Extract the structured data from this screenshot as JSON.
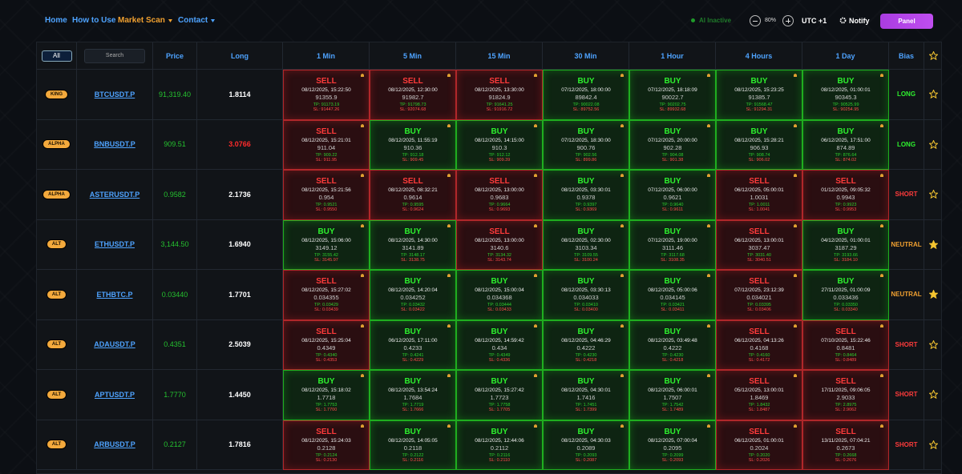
{
  "nav": {
    "links": [
      "Home",
      "How to Use",
      "Market Scan",
      "Contact"
    ],
    "ai_status": "AI Inactive",
    "zoom": "80%",
    "timezone": "UTC +1",
    "notify": "Notify",
    "panel": "Panel"
  },
  "table": {
    "filter": "All",
    "search": "Search",
    "headers": {
      "price": "Price",
      "long": "Long",
      "timeframes": [
        "1 Min",
        "5 Min",
        "15 Min",
        "30 Min",
        "1 Hour",
        "4 Hours",
        "1 Day"
      ],
      "bias": "Bias"
    },
    "rows": [
      {
        "badge": "KING",
        "symbol": "BTCUSDT.P",
        "price": "91,319.40",
        "long": "1.8114",
        "long_color": "#ffffff",
        "bias": "LONG",
        "starred": false,
        "cells": [
          [
            "SELL",
            "08/12/2025, 15:22:50",
            "91355.9",
            "TP: 91173.19",
            "SL: 91447.26"
          ],
          [
            "SELL",
            "08/12/2025, 12:30:00",
            "91982.7",
            "TP: 91798.73",
            "SL: 92074.68"
          ],
          [
            "SELL",
            "08/12/2025, 13:30:00",
            "91824.9",
            "TP: 91641.25",
            "SL: 91916.72"
          ],
          [
            "BUY",
            "07/12/2025, 18:00:00",
            "89842.4",
            "TP: 90022.08",
            "SL: 89752.56"
          ],
          [
            "BUY",
            "07/12/2025, 18:18:09",
            "90022.7",
            "TP: 90202.75",
            "SL: 89932.68"
          ],
          [
            "BUY",
            "08/12/2025, 15:23:25",
            "91385.7",
            "TP: 91568.47",
            "SL: 91294.31"
          ],
          [
            "BUY",
            "08/12/2025, 01:00:01",
            "90345.3",
            "TP: 90525.99",
            "SL: 90254.95"
          ]
        ]
      },
      {
        "badge": "ALPHA",
        "symbol": "BNBUSDT.P",
        "price": "909.51",
        "long": "3.0766",
        "long_color": "#ff2b2b",
        "bias": "LONG",
        "starred": false,
        "cells": [
          [
            "SELL",
            "08/12/2025, 15:21:01",
            "911.04",
            "TP: 909.22",
            "SL: 911.95"
          ],
          [
            "BUY",
            "08/12/2025, 11:55:19",
            "910.36",
            "TP: 912.18",
            "SL: 909.45"
          ],
          [
            "BUY",
            "08/12/2025, 14:15:00",
            "910.3",
            "TP: 912.12",
            "SL: 909.39"
          ],
          [
            "BUY",
            "07/12/2025, 18:30:00",
            "900.76",
            "TP: 902.56",
            "SL: 899.86"
          ],
          [
            "BUY",
            "07/12/2025, 20:00:00",
            "902.28",
            "TP: 904.08",
            "SL: 901.38"
          ],
          [
            "BUY",
            "08/12/2025, 15:28:21",
            "906.93",
            "TP: 908.74",
            "SL: 906.02"
          ],
          [
            "BUY",
            "06/12/2025, 17:51:00",
            "874.89",
            "TP: 876.64",
            "SL: 874.02"
          ]
        ]
      },
      {
        "badge": "ALPHA",
        "symbol": "ASTERUSDT.P",
        "price": "0.9582",
        "long": "2.1736",
        "long_color": "#ffffff",
        "bias": "SHORT",
        "starred": false,
        "cells": [
          [
            "SELL",
            "08/12/2025, 15:21:56",
            "0.954",
            "TP: 0.9521",
            "SL: 0.9550"
          ],
          [
            "SELL",
            "08/12/2025, 08:32:21",
            "0.9614",
            "TP: 0.9595",
            "SL: 0.9624"
          ],
          [
            "SELL",
            "08/12/2025, 13:00:00",
            "0.9683",
            "TP: 0.9664",
            "SL: 0.9693"
          ],
          [
            "BUY",
            "08/12/2025, 03:30:01",
            "0.9378",
            "TP: 0.9397",
            "SL: 0.9369"
          ],
          [
            "BUY",
            "07/12/2025, 06:00:00",
            "0.9621",
            "TP: 0.9640",
            "SL: 0.9611"
          ],
          [
            "SELL",
            "06/12/2025, 05:00:01",
            "1.0031",
            "TP: 1.0011",
            "SL: 1.0041"
          ],
          [
            "SELL",
            "01/12/2025, 09:05:32",
            "0.9943",
            "TP: 0.9923",
            "SL: 0.9953"
          ]
        ]
      },
      {
        "badge": "ALT",
        "symbol": "ETHUSDT.P",
        "price": "3,144.50",
        "long": "1.6940",
        "long_color": "#ffffff",
        "bias": "NEUTRAL",
        "starred": true,
        "cells": [
          [
            "BUY",
            "08/12/2025, 15:06:00",
            "3149.12",
            "TP: 3155.42",
            "SL: 3145.97"
          ],
          [
            "BUY",
            "08/12/2025, 14:30:00",
            "3141.89",
            "TP: 3148.17",
            "SL: 3138.75"
          ],
          [
            "SELL",
            "08/12/2025, 13:00:00",
            "3140.6",
            "TP: 3134.32",
            "SL: 3143.74"
          ],
          [
            "BUY",
            "08/12/2025, 02:30:00",
            "3103.34",
            "TP: 3109.55",
            "SL: 3100.24"
          ],
          [
            "BUY",
            "07/12/2025, 19:00:00",
            "3111.46",
            "TP: 3117.68",
            "SL: 3108.35"
          ],
          [
            "SELL",
            "06/12/2025, 13:00:01",
            "3037.47",
            "TP: 3031.40",
            "SL: 3040.51"
          ],
          [
            "BUY",
            "04/12/2025, 01:00:01",
            "3187.29",
            "TP: 3193.66",
            "SL: 3184.10"
          ]
        ]
      },
      {
        "badge": "ALT",
        "symbol": "ETHBTC.P",
        "price": "0.03440",
        "long": "1.7701",
        "long_color": "#ffffff",
        "bias": "NEUTRAL",
        "starred": true,
        "cells": [
          [
            "SELL",
            "08/12/2025, 15:27:02",
            "0.034355",
            "TP: 0.03429",
            "SL: 0.03439"
          ],
          [
            "BUY",
            "08/12/2025, 14:20:04",
            "0.034252",
            "TP: 0.03432",
            "SL: 0.03422"
          ],
          [
            "BUY",
            "08/12/2025, 15:00:04",
            "0.034368",
            "TP: 0.03444",
            "SL: 0.03433"
          ],
          [
            "BUY",
            "08/12/2025, 03:30:13",
            "0.034033",
            "TP: 0.03410",
            "SL: 0.03400"
          ],
          [
            "BUY",
            "08/12/2025, 05:00:06",
            "0.034145",
            "TP: 0.03421",
            "SL: 0.03411"
          ],
          [
            "SELL",
            "07/12/2025, 23:12:39",
            "0.034021",
            "TP: 0.03395",
            "SL: 0.03406"
          ],
          [
            "BUY",
            "27/11/2025, 01:00:09",
            "0.033436",
            "TP: 0.03350",
            "SL: 0.03340"
          ]
        ]
      },
      {
        "badge": "ALT",
        "symbol": "ADAUSDT.P",
        "price": "0.4351",
        "long": "2.5039",
        "long_color": "#ffffff",
        "bias": "SHORT",
        "starred": false,
        "cells": [
          [
            "SELL",
            "08/12/2025, 15:25:04",
            "0.4349",
            "TP: 0.4340",
            "SL: 0.4353"
          ],
          [
            "BUY",
            "06/12/2025, 17:11:00",
            "0.4233",
            "TP: 0.4241",
            "SL: 0.4229"
          ],
          [
            "BUY",
            "08/12/2025, 14:59:42",
            "0.434",
            "TP: 0.4349",
            "SL: 0.4336"
          ],
          [
            "BUY",
            "08/12/2025, 04:46:29",
            "0.4222",
            "TP: 0.4230",
            "SL: 0.4218"
          ],
          [
            "BUY",
            "08/12/2025, 03:49:48",
            "0.4222",
            "TP: 0.4230",
            "SL: 0.4218"
          ],
          [
            "SELL",
            "06/12/2025, 04:13:26",
            "0.4168",
            "TP: 0.4160",
            "SL: 0.4172"
          ],
          [
            "SELL",
            "07/10/2025, 15:22:46",
            "0.8481",
            "TP: 0.8464",
            "SL: 0.8489"
          ]
        ]
      },
      {
        "badge": "ALT",
        "symbol": "APTUSDT.P",
        "price": "1.7770",
        "long": "1.4450",
        "long_color": "#ffffff",
        "bias": "SHORT",
        "starred": false,
        "cells": [
          [
            "BUY",
            "08/12/2025, 15:18:02",
            "1.7718",
            "TP: 1.7753",
            "SL: 1.7700"
          ],
          [
            "BUY",
            "08/12/2025, 13:54:24",
            "1.7684",
            "TP: 1.7719",
            "SL: 1.7666"
          ],
          [
            "BUY",
            "08/12/2025, 15:27:42",
            "1.7723",
            "TP: 1.7758",
            "SL: 1.7705"
          ],
          [
            "BUY",
            "08/12/2025, 04:30:01",
            "1.7416",
            "TP: 1.7451",
            "SL: 1.7399"
          ],
          [
            "BUY",
            "08/12/2025, 06:00:01",
            "1.7507",
            "TP: 1.7542",
            "SL: 1.7489"
          ],
          [
            "SELL",
            "05/12/2025, 13:00:01",
            "1.8469",
            "TP: 1.8432",
            "SL: 1.8487"
          ],
          [
            "SELL",
            "17/11/2025, 09:06:05",
            "2.9033",
            "TP: 2.8975",
            "SL: 2.9062"
          ]
        ]
      },
      {
        "badge": "ALT",
        "symbol": "ARBUSDT.P",
        "price": "0.2127",
        "long": "1.7816",
        "long_color": "#ffffff",
        "bias": "SHORT",
        "starred": false,
        "cells": [
          [
            "SELL",
            "08/12/2025, 15:24:03",
            "0.2128",
            "TP: 0.2124",
            "SL: 0.2130"
          ],
          [
            "BUY",
            "08/12/2025, 14:05:05",
            "0.2118",
            "TP: 0.2122",
            "SL: 0.2116"
          ],
          [
            "BUY",
            "08/12/2025, 12:44:06",
            "0.2112",
            "TP: 0.2116",
            "SL: 0.2110"
          ],
          [
            "BUY",
            "08/12/2025, 04:30:03",
            "0.2089",
            "TP: 0.2093",
            "SL: 0.2087"
          ],
          [
            "BUY",
            "08/12/2025, 07:00:04",
            "0.2095",
            "TP: 0.2099",
            "SL: 0.2093"
          ],
          [
            "SELL",
            "06/12/2025, 01:00:01",
            "0.2024",
            "TP: 0.2020",
            "SL: 0.2026"
          ],
          [
            "SELL",
            "13/11/2025, 07:04:21",
            "0.2673",
            "TP: 0.2668",
            "SL: 0.2676"
          ]
        ]
      }
    ]
  }
}
